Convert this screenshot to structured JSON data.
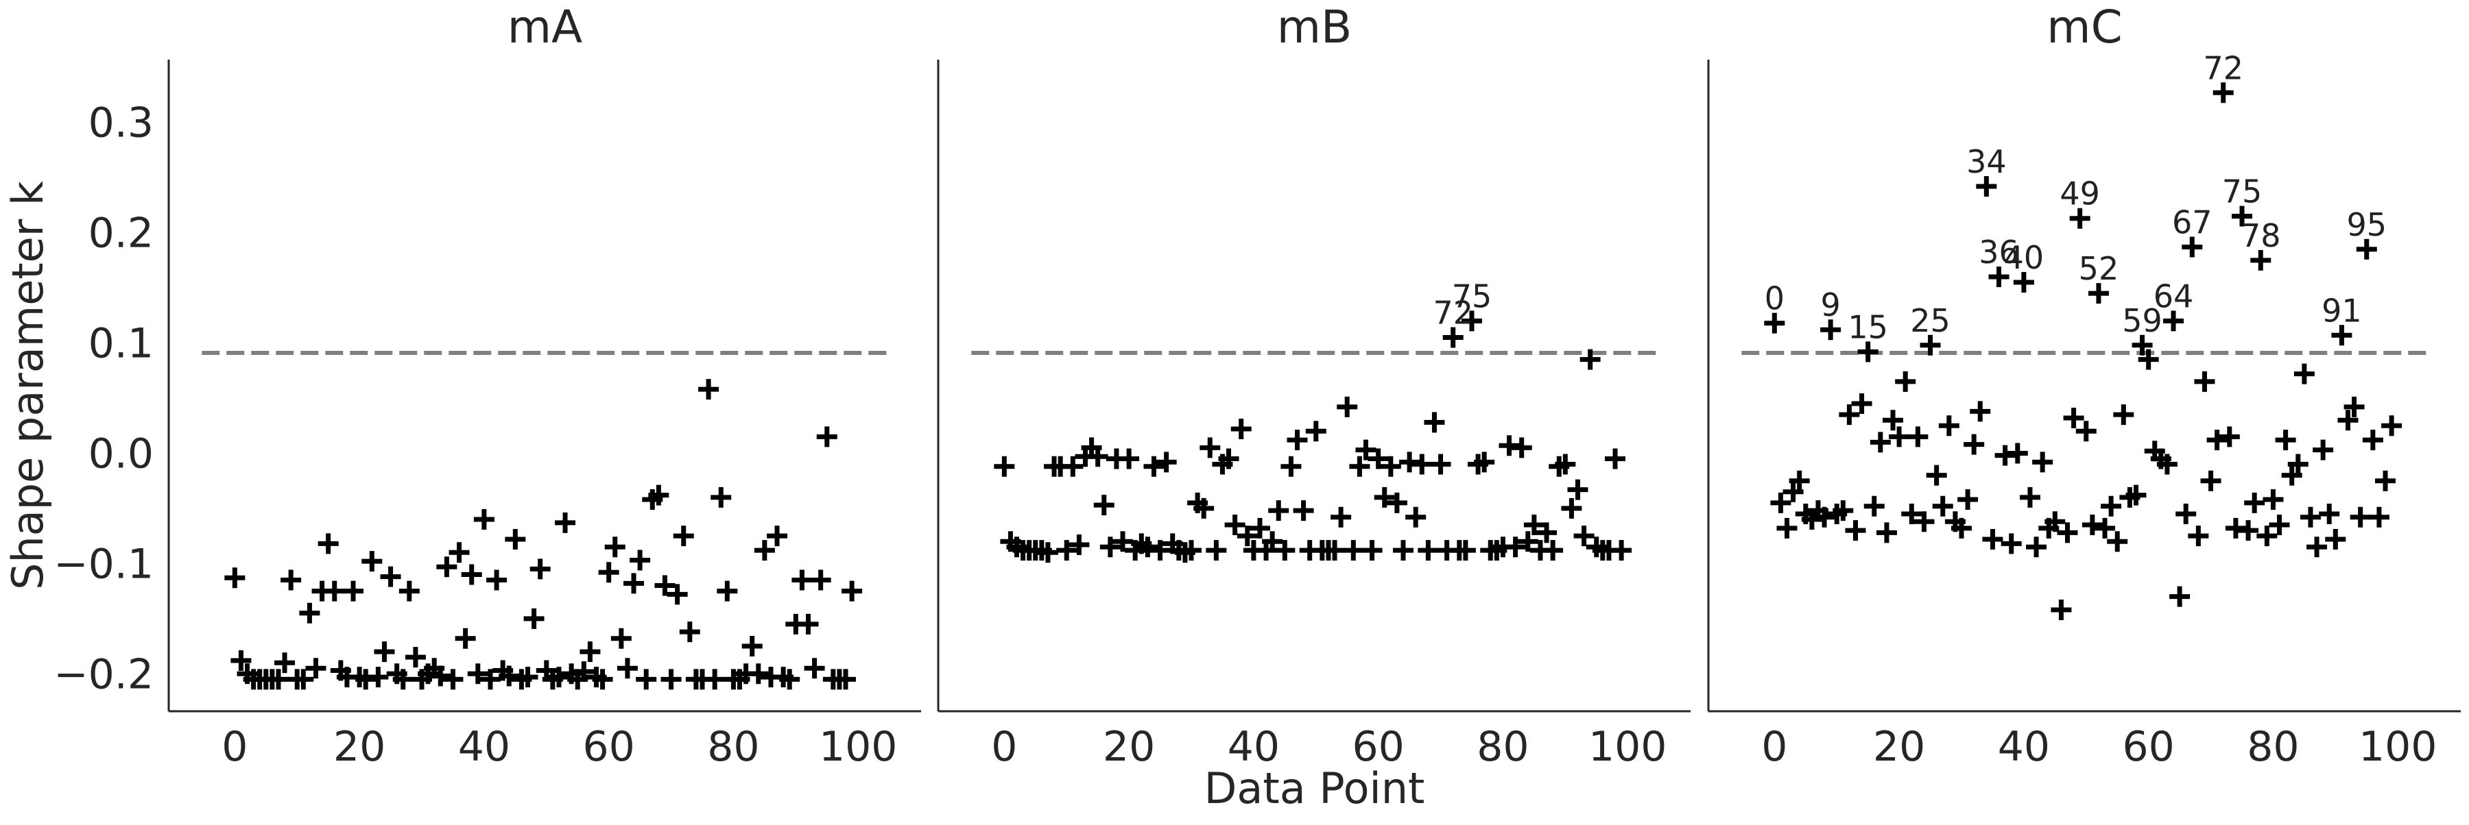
{
  "chart_data": [
    {
      "type": "scatter",
      "title": "mA",
      "ylabel": "Shape parameter k",
      "x": [
        0,
        1,
        2,
        3,
        4,
        5,
        6,
        7,
        8,
        9,
        10,
        11,
        12,
        13,
        14,
        15,
        16,
        17,
        18,
        19,
        20,
        21,
        22,
        23,
        24,
        25,
        26,
        27,
        28,
        29,
        30,
        31,
        32,
        33,
        34,
        35,
        36,
        37,
        38,
        39,
        40,
        41,
        42,
        43,
        44,
        45,
        46,
        47,
        48,
        49,
        50,
        51,
        52,
        53,
        54,
        55,
        56,
        57,
        58,
        59,
        60,
        61,
        62,
        63,
        64,
        65,
        66,
        67,
        68,
        69,
        70,
        71,
        72,
        73,
        74,
        75,
        76,
        77,
        78,
        79,
        80,
        81,
        82,
        83,
        84,
        85,
        86,
        87,
        88,
        89,
        90,
        91,
        92,
        93,
        94,
        95,
        96,
        97,
        98,
        99
      ],
      "values": [
        -0.113,
        -0.188,
        -0.2,
        -0.205,
        -0.205,
        -0.205,
        -0.205,
        -0.205,
        -0.19,
        -0.115,
        -0.205,
        -0.205,
        -0.145,
        -0.195,
        -0.125,
        -0.082,
        -0.125,
        -0.197,
        -0.203,
        -0.125,
        -0.203,
        -0.205,
        -0.098,
        -0.203,
        -0.18,
        -0.112,
        -0.2,
        -0.205,
        -0.125,
        -0.185,
        -0.205,
        -0.2,
        -0.195,
        -0.202,
        -0.103,
        -0.205,
        -0.09,
        -0.168,
        -0.11,
        -0.2,
        -0.06,
        -0.205,
        -0.115,
        -0.197,
        -0.202,
        -0.078,
        -0.205,
        -0.203,
        -0.15,
        -0.105,
        -0.197,
        -0.205,
        -0.203,
        -0.063,
        -0.2,
        -0.205,
        -0.198,
        -0.18,
        -0.203,
        -0.205,
        -0.108,
        -0.085,
        -0.168,
        -0.195,
        -0.118,
        -0.097,
        -0.205,
        -0.042,
        -0.038,
        -0.12,
        -0.205,
        -0.128,
        -0.075,
        -0.162,
        -0.205,
        -0.205,
        0.058,
        -0.205,
        -0.04,
        -0.125,
        -0.205,
        -0.205,
        -0.2,
        -0.175,
        -0.2,
        -0.088,
        -0.203,
        -0.075,
        -0.203,
        -0.205,
        -0.155,
        -0.115,
        -0.155,
        -0.195,
        -0.115,
        0.015,
        -0.205,
        -0.205,
        -0.205,
        -0.125
      ],
      "color": "#000000",
      "marker": "+",
      "threshold": 0.091,
      "xlim": [
        -10.6,
        110.1
      ],
      "xticks": [
        0,
        20,
        40,
        60,
        80,
        100
      ],
      "ylim": [
        -0.234,
        0.357
      ],
      "yticks": [
        {
          "value": -0.2,
          "label": "−0.2"
        },
        {
          "value": -0.1,
          "label": "−0.1"
        },
        {
          "value": 0,
          "label": "0.0"
        },
        0.1,
        0.2,
        0.3
      ]
    },
    {
      "type": "scatter",
      "title": "mB",
      "xlabel": "Data Point",
      "x": [
        0,
        1,
        2,
        3,
        4,
        5,
        6,
        7,
        8,
        9,
        10,
        11,
        12,
        13,
        14,
        15,
        16,
        17,
        18,
        19,
        20,
        21,
        22,
        23,
        24,
        25,
        26,
        27,
        28,
        29,
        30,
        31,
        32,
        33,
        34,
        35,
        36,
        37,
        38,
        39,
        40,
        41,
        42,
        43,
        44,
        45,
        46,
        47,
        48,
        49,
        50,
        51,
        52,
        53,
        54,
        55,
        56,
        57,
        58,
        59,
        60,
        61,
        62,
        63,
        64,
        65,
        66,
        67,
        68,
        69,
        70,
        71,
        72,
        73,
        74,
        75,
        76,
        77,
        78,
        79,
        80,
        81,
        82,
        83,
        84,
        85,
        86,
        87,
        88,
        89,
        90,
        91,
        92,
        93,
        94,
        95,
        96,
        97,
        98,
        99
      ],
      "values": [
        -0.012,
        -0.08,
        -0.085,
        -0.088,
        -0.088,
        -0.088,
        -0.088,
        -0.09,
        -0.012,
        -0.012,
        -0.088,
        -0.012,
        -0.083,
        -0.003,
        0.005,
        -0.003,
        -0.047,
        -0.085,
        -0.005,
        -0.08,
        -0.005,
        -0.088,
        -0.082,
        -0.085,
        -0.012,
        -0.088,
        -0.008,
        -0.082,
        -0.088,
        -0.09,
        -0.088,
        -0.045,
        -0.05,
        0.005,
        -0.088,
        -0.01,
        -0.005,
        -0.065,
        0.022,
        -0.075,
        -0.088,
        -0.068,
        -0.088,
        -0.08,
        -0.052,
        -0.088,
        -0.012,
        0.012,
        -0.052,
        -0.088,
        0.02,
        -0.088,
        -0.088,
        -0.088,
        -0.058,
        0.042,
        -0.088,
        -0.012,
        0.003,
        -0.088,
        -0.005,
        -0.04,
        -0.012,
        -0.045,
        -0.088,
        -0.008,
        -0.058,
        -0.01,
        -0.088,
        0.028,
        -0.01,
        -0.088,
        0.105,
        -0.088,
        -0.088,
        0.12,
        -0.01,
        -0.008,
        -0.088,
        -0.088,
        -0.085,
        0.007,
        -0.085,
        0.005,
        -0.08,
        -0.065,
        -0.088,
        -0.072,
        -0.088,
        -0.012,
        -0.01,
        -0.05,
        -0.033,
        -0.075,
        0.085,
        -0.085,
        -0.088,
        -0.088,
        -0.005,
        -0.088
      ],
      "point_labels": [
        null,
        null,
        null,
        null,
        null,
        null,
        null,
        null,
        null,
        null,
        null,
        null,
        null,
        null,
        null,
        null,
        null,
        null,
        null,
        null,
        null,
        null,
        null,
        null,
        null,
        null,
        null,
        null,
        null,
        null,
        null,
        null,
        null,
        null,
        null,
        null,
        null,
        null,
        null,
        null,
        null,
        null,
        null,
        null,
        null,
        null,
        null,
        null,
        null,
        null,
        null,
        null,
        null,
        null,
        null,
        null,
        null,
        null,
        null,
        null,
        null,
        null,
        null,
        null,
        null,
        null,
        null,
        null,
        null,
        null,
        null,
        null,
        "72",
        null,
        null,
        "75",
        null,
        null,
        null,
        null,
        null,
        null,
        null,
        null,
        null,
        null,
        null,
        null,
        null,
        null,
        null,
        null,
        null,
        null,
        null,
        null,
        null,
        null,
        null,
        null
      ],
      "color": "#000000",
      "marker": "+",
      "threshold": 0.091,
      "xlim": [
        -10.6,
        110.1
      ],
      "xticks": [
        0,
        20,
        40,
        60,
        80,
        100
      ],
      "ylim": [
        -0.234,
        0.357
      ]
    },
    {
      "type": "scatter",
      "title": "mC",
      "x": [
        0,
        1,
        2,
        3,
        4,
        5,
        6,
        7,
        8,
        9,
        10,
        11,
        12,
        13,
        14,
        15,
        16,
        17,
        18,
        19,
        20,
        21,
        22,
        23,
        24,
        25,
        26,
        27,
        28,
        29,
        30,
        31,
        32,
        33,
        34,
        35,
        36,
        37,
        38,
        39,
        40,
        41,
        42,
        43,
        44,
        45,
        46,
        47,
        48,
        49,
        50,
        51,
        52,
        53,
        54,
        55,
        56,
        57,
        58,
        59,
        60,
        61,
        62,
        63,
        64,
        65,
        66,
        67,
        68,
        69,
        70,
        71,
        72,
        73,
        74,
        75,
        76,
        77,
        78,
        79,
        80,
        81,
        82,
        83,
        84,
        85,
        86,
        87,
        88,
        89,
        90,
        91,
        92,
        93,
        94,
        95,
        96,
        97,
        98,
        99
      ],
      "values": [
        0.118,
        -0.045,
        -0.068,
        -0.035,
        -0.025,
        -0.055,
        -0.06,
        -0.052,
        -0.058,
        0.112,
        -0.055,
        -0.052,
        0.035,
        -0.07,
        0.045,
        0.092,
        -0.048,
        0.01,
        -0.072,
        0.03,
        0.015,
        0.065,
        -0.055,
        0.015,
        -0.062,
        0.098,
        -0.02,
        -0.048,
        0.025,
        -0.062,
        -0.068,
        -0.042,
        0.008,
        0.038,
        0.242,
        -0.078,
        0.16,
        -0.002,
        -0.082,
        0.0,
        0.155,
        -0.04,
        -0.085,
        -0.008,
        -0.068,
        -0.062,
        -0.142,
        -0.072,
        0.032,
        0.213,
        0.02,
        -0.065,
        0.145,
        -0.068,
        -0.048,
        -0.08,
        0.035,
        -0.04,
        -0.038,
        0.098,
        0.085,
        0.002,
        -0.005,
        -0.01,
        0.12,
        -0.13,
        -0.055,
        0.187,
        -0.075,
        0.065,
        -0.025,
        0.012,
        0.327,
        0.015,
        -0.068,
        0.215,
        -0.07,
        -0.045,
        0.175,
        -0.075,
        -0.042,
        -0.065,
        0.012,
        -0.02,
        -0.01,
        0.072,
        -0.058,
        -0.085,
        0.003,
        -0.055,
        -0.078,
        0.107,
        0.03,
        0.042,
        -0.058,
        0.185,
        0.012,
        -0.058,
        -0.025,
        0.025
      ],
      "point_labels": [
        "0",
        null,
        null,
        null,
        null,
        null,
        null,
        null,
        null,
        "9",
        null,
        null,
        null,
        null,
        null,
        "15",
        null,
        null,
        null,
        null,
        null,
        null,
        null,
        null,
        null,
        "25",
        null,
        null,
        null,
        null,
        null,
        null,
        null,
        null,
        "34",
        null,
        "36",
        null,
        null,
        null,
        "40",
        null,
        null,
        null,
        null,
        null,
        null,
        null,
        null,
        "49",
        null,
        null,
        "52",
        null,
        null,
        null,
        null,
        null,
        null,
        "59",
        null,
        null,
        null,
        null,
        "64",
        null,
        null,
        "67",
        null,
        null,
        null,
        null,
        "72",
        null,
        null,
        "75",
        null,
        null,
        "78",
        null,
        null,
        null,
        null,
        null,
        null,
        null,
        null,
        null,
        null,
        null,
        null,
        "91",
        null,
        null,
        null,
        "95",
        null,
        null,
        null,
        null
      ],
      "color": "#000000",
      "marker": "+",
      "threshold": 0.091,
      "xlim": [
        -10.6,
        110.1
      ],
      "xticks": [
        0,
        20,
        40,
        60,
        80,
        100
      ],
      "ylim": [
        -0.234,
        0.357
      ]
    }
  ]
}
